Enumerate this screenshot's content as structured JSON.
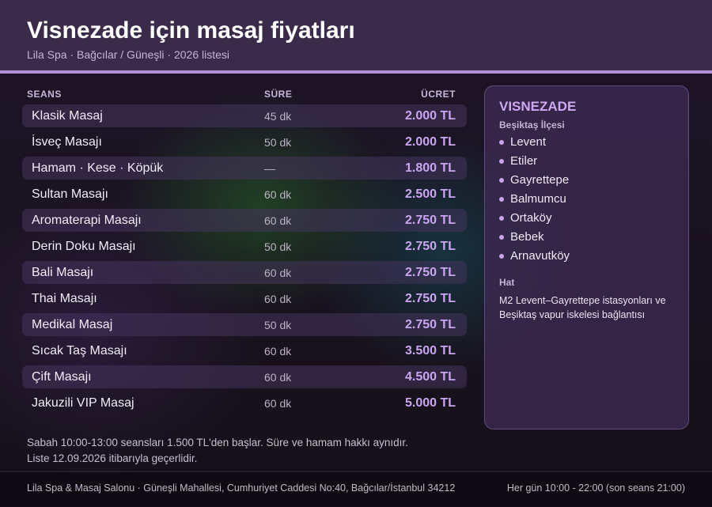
{
  "header": {
    "title": "Visnezade için masaj fiyatları",
    "subtitle": "Lila Spa · Bağcılar / Güneşli · 2026 listesi"
  },
  "table": {
    "columns": {
      "name": "SEANS",
      "duration": "SÜRE",
      "price": "ÜCRET"
    },
    "rows": [
      {
        "name": "Klasik Masaj",
        "duration": "45 dk",
        "price": "2.000 TL"
      },
      {
        "name": "İsveç Masajı",
        "duration": "50 dk",
        "price": "2.000 TL"
      },
      {
        "name": "Hamam · Kese · Köpük",
        "duration": "—",
        "price": "1.800 TL"
      },
      {
        "name": "Sultan Masajı",
        "duration": "60 dk",
        "price": "2.500 TL"
      },
      {
        "name": "Aromaterapi Masajı",
        "duration": "60 dk",
        "price": "2.750 TL"
      },
      {
        "name": "Derin Doku Masajı",
        "duration": "50 dk",
        "price": "2.750 TL"
      },
      {
        "name": "Bali Masajı",
        "duration": "60 dk",
        "price": "2.750 TL"
      },
      {
        "name": "Thai Masajı",
        "duration": "60 dk",
        "price": "2.750 TL"
      },
      {
        "name": "Medikal Masaj",
        "duration": "50 dk",
        "price": "2.750 TL"
      },
      {
        "name": "Sıcak Taş Masajı",
        "duration": "60 dk",
        "price": "3.500 TL"
      },
      {
        "name": "Çift Masajı",
        "duration": "60 dk",
        "price": "4.500 TL"
      },
      {
        "name": "Jakuzili VIP Masaj",
        "duration": "60 dk",
        "price": "5.000 TL"
      }
    ]
  },
  "card": {
    "title": "VISNEZADE",
    "district": "Beşiktaş İlçesi",
    "areas": [
      "Levent",
      "Etiler",
      "Gayrettepe",
      "Balmumcu",
      "Ortaköy",
      "Bebek",
      "Arnavutköy"
    ],
    "transit_title": "Hat",
    "transit_text": "M2 Levent–Gayrettepe istasyonları ve Beşiktaş vapur iskelesi bağlantısı"
  },
  "notes": {
    "line1": "Sabah 10:00-13:00 seansları 1.500 TL'den başlar. Süre ve hamam hakkı aynıdır.",
    "line2": "Liste 12.09.2026 itibarıyla geçerlidir."
  },
  "footer": {
    "address": "Lila Spa & Masaj Salonu · Güneşli Mahallesi, Cumhuriyet Caddesi No:40, Bağcılar/İstanbul 34212",
    "hours": "Her gün 10:00 - 22:00 (son seans 21:00)"
  },
  "colors": {
    "accent": "#b58ed8",
    "price": "#c9a6ef",
    "header_bg": "#3b2b4b"
  }
}
